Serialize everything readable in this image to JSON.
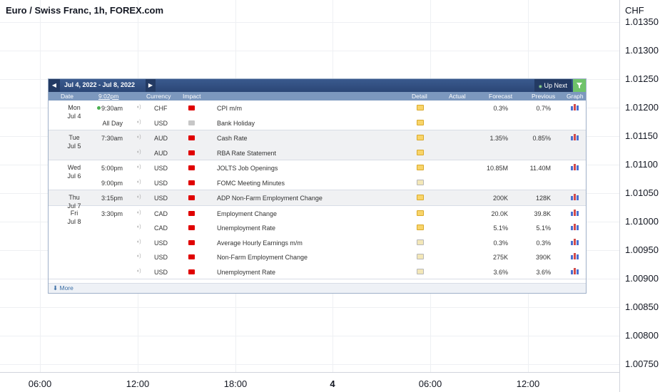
{
  "chart": {
    "title": "Euro / Swiss Franc, 1h, FOREX.com",
    "currency": "CHF",
    "price_ticks": [
      "1.01350",
      "1.01300",
      "1.01250",
      "1.01200",
      "1.01150",
      "1.01100",
      "1.01050",
      "1.01000",
      "1.00950",
      "1.00900",
      "1.00850",
      "1.00800",
      "1.00750"
    ],
    "time_ticks": [
      "06:00",
      "12:00",
      "18:00",
      "4",
      "06:00",
      "12:00"
    ]
  },
  "calendar": {
    "prev_icon": "◀",
    "next_icon": "▶",
    "date_range": "Jul 4, 2022 - Jul 8, 2022",
    "up_next": "Up Next",
    "up_next_icon": "◉",
    "filter_icon": "filter-icon",
    "columns": {
      "date": "Date",
      "time": "9:02pm",
      "currency": "Currency",
      "impact": "Impact",
      "detail": "Detail",
      "actual": "Actual",
      "forecast": "Forecast",
      "previous": "Previous",
      "graph": "Graph"
    },
    "more": "More",
    "more_icon": "⬇",
    "days": [
      {
        "dow": "Mon",
        "date": "Jul 4",
        "shade": false,
        "events": [
          {
            "time": "9:30am",
            "upcoming": true,
            "currency": "CHF",
            "impact": "high",
            "event": "CPI m/m",
            "detail": "folder",
            "actual": "",
            "forecast": "0.3%",
            "previous": "0.7%",
            "graph": true
          },
          {
            "time": "All Day",
            "upcoming": false,
            "currency": "USD",
            "impact": "holiday",
            "event": "Bank Holiday",
            "detail": "folder",
            "actual": "",
            "forecast": "",
            "previous": "",
            "graph": false
          }
        ]
      },
      {
        "dow": "Tue",
        "date": "Jul 5",
        "shade": true,
        "events": [
          {
            "time": "7:30am",
            "upcoming": false,
            "currency": "AUD",
            "impact": "high",
            "event": "Cash Rate",
            "detail": "folder",
            "actual": "",
            "forecast": "1.35%",
            "previous": "0.85%",
            "graph": true
          },
          {
            "time": "",
            "upcoming": false,
            "currency": "AUD",
            "impact": "high",
            "event": "RBA Rate Statement",
            "detail": "folder",
            "actual": "",
            "forecast": "",
            "previous": "",
            "graph": false
          }
        ]
      },
      {
        "dow": "Wed",
        "date": "Jul 6",
        "shade": false,
        "events": [
          {
            "time": "5:00pm",
            "upcoming": false,
            "currency": "USD",
            "impact": "high",
            "event": "JOLTS Job Openings",
            "detail": "folder",
            "actual": "",
            "forecast": "10.85M",
            "previous": "11.40M",
            "graph": true
          },
          {
            "time": "9:00pm",
            "upcoming": false,
            "currency": "USD",
            "impact": "high",
            "event": "FOMC Meeting Minutes",
            "detail": "folder-alt",
            "actual": "",
            "forecast": "",
            "previous": "",
            "graph": false
          }
        ]
      },
      {
        "dow": "Thu",
        "date": "Jul 7",
        "shade": true,
        "events": [
          {
            "time": "3:15pm",
            "upcoming": false,
            "currency": "USD",
            "impact": "high",
            "event": "ADP Non-Farm Employment Change",
            "detail": "folder",
            "actual": "",
            "forecast": "200K",
            "previous": "128K",
            "graph": true
          }
        ]
      },
      {
        "dow": "Fri",
        "date": "Jul 8",
        "shade": false,
        "events": [
          {
            "time": "3:30pm",
            "upcoming": false,
            "currency": "CAD",
            "impact": "high",
            "event": "Employment Change",
            "detail": "folder",
            "actual": "",
            "forecast": "20.0K",
            "previous": "39.8K",
            "graph": true
          },
          {
            "time": "",
            "upcoming": false,
            "currency": "CAD",
            "impact": "high",
            "event": "Unemployment Rate",
            "detail": "folder",
            "actual": "",
            "forecast": "5.1%",
            "previous": "5.1%",
            "graph": true
          },
          {
            "time": "",
            "upcoming": false,
            "currency": "USD",
            "impact": "high",
            "event": "Average Hourly Earnings m/m",
            "detail": "folder-alt",
            "actual": "",
            "forecast": "0.3%",
            "previous": "0.3%",
            "graph": true
          },
          {
            "time": "",
            "upcoming": false,
            "currency": "USD",
            "impact": "high",
            "event": "Non-Farm Employment Change",
            "detail": "folder-alt",
            "actual": "",
            "forecast": "275K",
            "previous": "390K",
            "graph": true
          },
          {
            "time": "",
            "upcoming": false,
            "currency": "USD",
            "impact": "high",
            "event": "Unemployment Rate",
            "detail": "folder-alt",
            "actual": "",
            "forecast": "3.6%",
            "previous": "3.6%",
            "graph": true
          }
        ]
      }
    ]
  },
  "colors": {
    "high_impact": "#e00000",
    "holiday_impact": "#c7c7c7",
    "header_bg": "#2b4676",
    "column_bg": "#7c98be",
    "accent_green": "#6fc36a"
  }
}
